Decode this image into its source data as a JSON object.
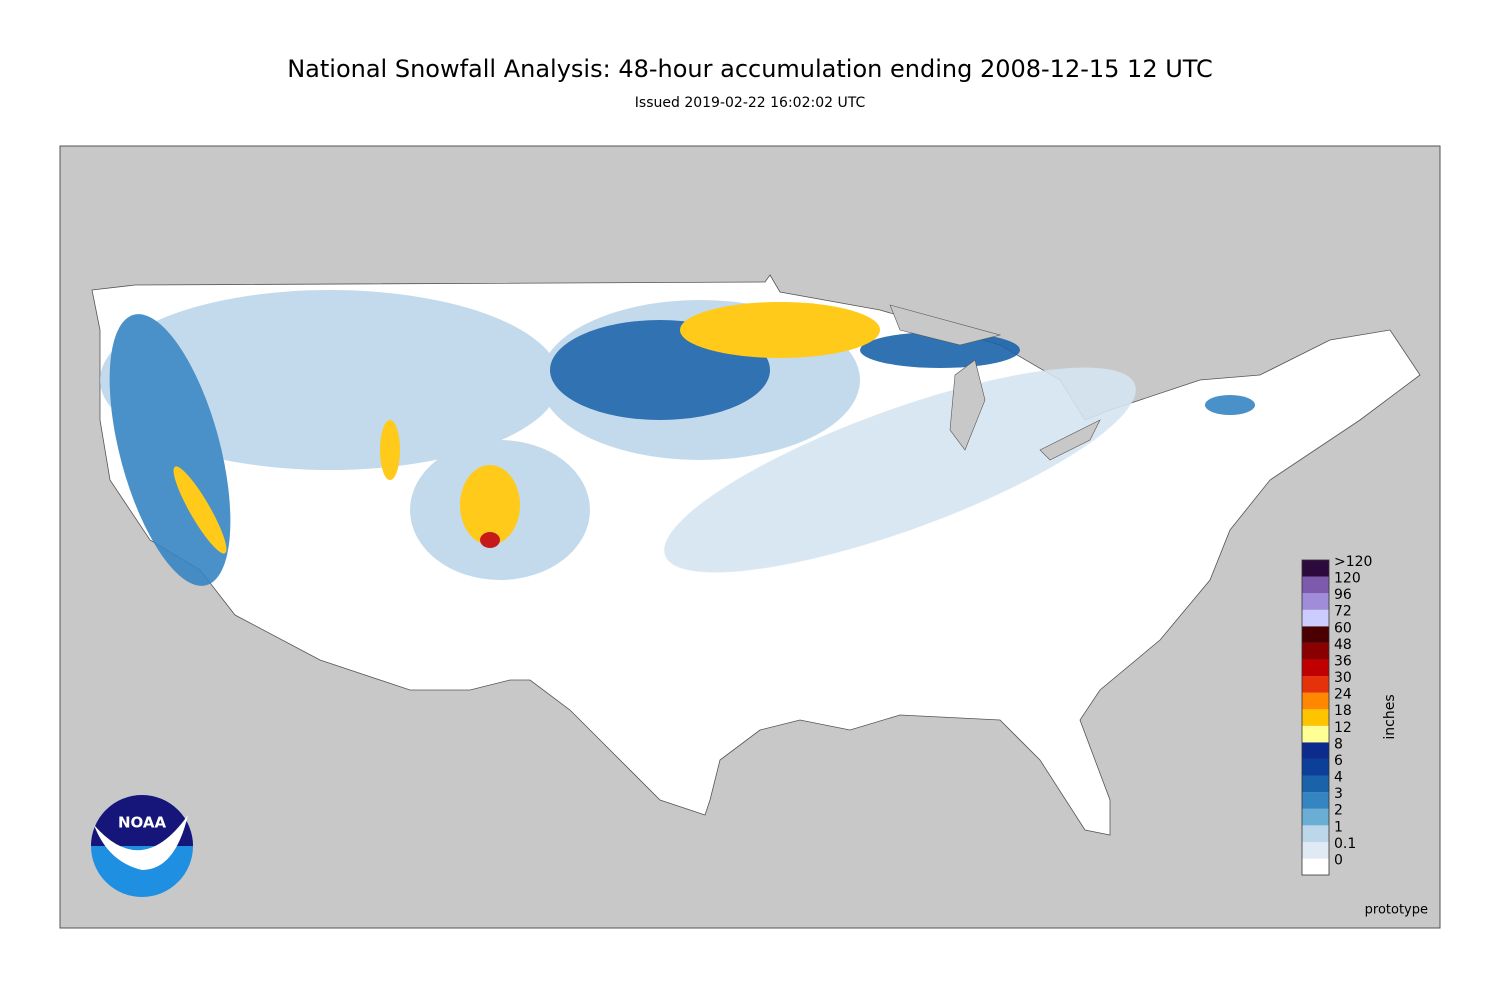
{
  "header": {
    "title": "National Snowfall Analysis: 48-hour accumulation ending 2008-12-15 12 UTC",
    "subtitle": "Issued 2019-02-22 16:02:02 UTC"
  },
  "legend": {
    "unit": "inches",
    "levels": [
      {
        "label": "0",
        "color": "#ffffff"
      },
      {
        "label": "0.1",
        "color": "#e0eaf4"
      },
      {
        "label": "1",
        "color": "#bcd6ea"
      },
      {
        "label": "2",
        "color": "#6aaed6"
      },
      {
        "label": "3",
        "color": "#3585c2"
      },
      {
        "label": "4",
        "color": "#1a62aa"
      },
      {
        "label": "6",
        "color": "#0b3f98"
      },
      {
        "label": "8",
        "color": "#0d2b8c"
      },
      {
        "label": "12",
        "color": "#ffff96"
      },
      {
        "label": "18",
        "color": "#ffc400"
      },
      {
        "label": "24",
        "color": "#ff8800"
      },
      {
        "label": "30",
        "color": "#e6320a"
      },
      {
        "label": "36",
        "color": "#c00000"
      },
      {
        "label": "48",
        "color": "#8a0000"
      },
      {
        "label": "60",
        "color": "#4a0000"
      },
      {
        "label": "72",
        "color": "#ccccff"
      },
      {
        "label": "96",
        "color": "#a08cd8"
      },
      {
        "label": "120",
        "color": "#7e5aac"
      },
      {
        "label": ">120",
        "color": "#2d0a3e"
      }
    ]
  },
  "footer": {
    "note": "prototype",
    "logo": "NOAA"
  }
}
